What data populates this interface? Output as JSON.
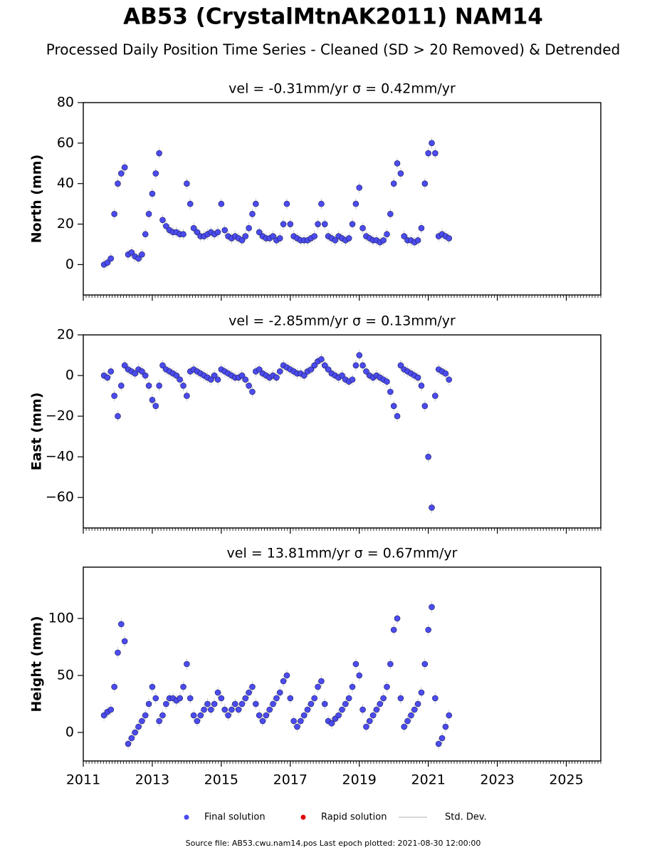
{
  "title": "AB53 (CrystalMtnAK2011) NAM14",
  "subtitle": "Processed Daily Position Time Series - Cleaned (SD > 20 Removed) & Detrended",
  "legend": [
    {
      "name": "Final solution",
      "color": "#4b4bf0"
    },
    {
      "name": "Rapid solution",
      "color": "#e00000"
    },
    {
      "name": "Std. Dev.",
      "color": "#cccccc"
    }
  ],
  "footer": "Source file: AB53.cwu.nam14.pos  Last epoch plotted: 2021-08-30 12:00:00",
  "chart_data": [
    {
      "type": "scatter",
      "title": "vel = -0.31mm/yr   σ = 0.42mm/yr",
      "ylabel": "North (mm)",
      "xlim": [
        2011,
        2026
      ],
      "ylim": [
        -15,
        80
      ],
      "yticks": [
        0,
        20,
        40,
        60,
        80
      ],
      "color": "#4b4bf0",
      "x": [
        2011.6,
        2011.7,
        2011.8,
        2011.9,
        2012.0,
        2012.1,
        2012.2,
        2012.3,
        2012.4,
        2012.5,
        2012.6,
        2012.7,
        2012.8,
        2012.9,
        2013.0,
        2013.1,
        2013.2,
        2013.3,
        2013.4,
        2013.5,
        2013.6,
        2013.7,
        2013.8,
        2013.9,
        2014.0,
        2014.1,
        2014.2,
        2014.3,
        2014.4,
        2014.5,
        2014.6,
        2014.7,
        2014.8,
        2014.9,
        2015.0,
        2015.1,
        2015.2,
        2015.3,
        2015.4,
        2015.5,
        2015.6,
        2015.7,
        2015.8,
        2015.9,
        2016.0,
        2016.1,
        2016.2,
        2016.3,
        2016.4,
        2016.5,
        2016.6,
        2016.7,
        2016.8,
        2016.9,
        2017.0,
        2017.1,
        2017.2,
        2017.3,
        2017.4,
        2017.5,
        2017.6,
        2017.7,
        2017.8,
        2017.9,
        2018.0,
        2018.1,
        2018.2,
        2018.3,
        2018.4,
        2018.5,
        2018.6,
        2018.7,
        2018.8,
        2018.9,
        2019.0,
        2019.1,
        2019.2,
        2019.3,
        2019.4,
        2019.5,
        2019.6,
        2019.7,
        2019.8,
        2019.9,
        2020.0,
        2020.1,
        2020.2,
        2020.3,
        2020.4,
        2020.5,
        2020.6,
        2020.7,
        2020.8,
        2020.9,
        2021.0,
        2021.1,
        2021.2,
        2021.3,
        2021.4,
        2021.5,
        2021.6
      ],
      "values": [
        0,
        1,
        3,
        25,
        40,
        45,
        48,
        5,
        6,
        4,
        3,
        5,
        15,
        25,
        35,
        45,
        55,
        22,
        19,
        17,
        16,
        16,
        15,
        15,
        40,
        30,
        18,
        16,
        14,
        14,
        15,
        16,
        15,
        16,
        30,
        17,
        14,
        13,
        14,
        13,
        12,
        14,
        18,
        25,
        30,
        16,
        14,
        13,
        13,
        14,
        12,
        13,
        20,
        30,
        20,
        14,
        13,
        12,
        12,
        12,
        13,
        14,
        20,
        30,
        20,
        14,
        13,
        12,
        14,
        13,
        12,
        13,
        20,
        30,
        38,
        18,
        14,
        13,
        12,
        12,
        11,
        12,
        15,
        25,
        40,
        50,
        45,
        14,
        12,
        12,
        11,
        12,
        18,
        40,
        55,
        60,
        55,
        14,
        15,
        14,
        13
      ]
    },
    {
      "type": "scatter",
      "title": "vel = -2.85mm/yr   σ = 0.13mm/yr",
      "ylabel": "East (mm)",
      "xlim": [
        2011,
        2026
      ],
      "ylim": [
        -75,
        20
      ],
      "yticks": [
        {
          "value": -60,
          "label": "−60"
        },
        {
          "value": -40,
          "label": "−40"
        },
        {
          "value": -20,
          "label": "−20"
        },
        0,
        20
      ],
      "color": "#4b4bf0",
      "x": [
        2011.6,
        2011.7,
        2011.8,
        2011.9,
        2012.0,
        2012.1,
        2012.2,
        2012.3,
        2012.4,
        2012.5,
        2012.6,
        2012.7,
        2012.8,
        2012.9,
        2013.0,
        2013.1,
        2013.2,
        2013.3,
        2013.4,
        2013.5,
        2013.6,
        2013.7,
        2013.8,
        2013.9,
        2014.0,
        2014.1,
        2014.2,
        2014.3,
        2014.4,
        2014.5,
        2014.6,
        2014.7,
        2014.8,
        2014.9,
        2015.0,
        2015.1,
        2015.2,
        2015.3,
        2015.4,
        2015.5,
        2015.6,
        2015.7,
        2015.8,
        2015.9,
        2016.0,
        2016.1,
        2016.2,
        2016.3,
        2016.4,
        2016.5,
        2016.6,
        2016.7,
        2016.8,
        2016.9,
        2017.0,
        2017.1,
        2017.2,
        2017.3,
        2017.4,
        2017.5,
        2017.6,
        2017.7,
        2017.8,
        2017.9,
        2018.0,
        2018.1,
        2018.2,
        2018.3,
        2018.4,
        2018.5,
        2018.6,
        2018.7,
        2018.8,
        2018.9,
        2019.0,
        2019.1,
        2019.2,
        2019.3,
        2019.4,
        2019.5,
        2019.6,
        2019.7,
        2019.8,
        2019.9,
        2020.0,
        2020.1,
        2020.2,
        2020.3,
        2020.4,
        2020.5,
        2020.6,
        2020.7,
        2020.8,
        2020.9,
        2021.0,
        2021.1,
        2021.2,
        2021.3,
        2021.4,
        2021.5,
        2021.6
      ],
      "values": [
        0,
        -1,
        2,
        -10,
        -20,
        -5,
        5,
        3,
        2,
        1,
        3,
        2,
        0,
        -5,
        -12,
        -15,
        -5,
        5,
        3,
        2,
        1,
        0,
        -2,
        -5,
        -10,
        2,
        3,
        2,
        1,
        0,
        -1,
        -2,
        0,
        -2,
        3,
        2,
        1,
        0,
        -1,
        -1,
        0,
        -2,
        -5,
        -8,
        2,
        3,
        1,
        0,
        -1,
        0,
        -1,
        2,
        5,
        4,
        3,
        2,
        1,
        1,
        0,
        2,
        3,
        5,
        7,
        8,
        5,
        3,
        1,
        0,
        -1,
        0,
        -2,
        -3,
        -2,
        5,
        10,
        5,
        2,
        0,
        -1,
        0,
        -1,
        -2,
        -3,
        -8,
        -15,
        -20,
        5,
        3,
        2,
        1,
        0,
        -1,
        -5,
        -15,
        -40,
        -65,
        -10,
        3,
        2,
        1,
        -2
      ]
    },
    {
      "type": "scatter",
      "title": "vel = 13.81mm/yr   σ = 0.67mm/yr",
      "ylabel": "Height (mm)",
      "xlim": [
        2011,
        2026
      ],
      "ylim": [
        -25,
        145
      ],
      "yticks": [
        0,
        50,
        100
      ],
      "color": "#4b4bf0",
      "xticks": [
        2011,
        2013,
        2015,
        2017,
        2019,
        2021,
        2023,
        2025
      ],
      "x": [
        2011.6,
        2011.7,
        2011.8,
        2011.9,
        2012.0,
        2012.1,
        2012.2,
        2012.3,
        2012.4,
        2012.5,
        2012.6,
        2012.7,
        2012.8,
        2012.9,
        2013.0,
        2013.1,
        2013.2,
        2013.3,
        2013.4,
        2013.5,
        2013.6,
        2013.7,
        2013.8,
        2013.9,
        2014.0,
        2014.1,
        2014.2,
        2014.3,
        2014.4,
        2014.5,
        2014.6,
        2014.7,
        2014.8,
        2014.9,
        2015.0,
        2015.1,
        2015.2,
        2015.3,
        2015.4,
        2015.5,
        2015.6,
        2015.7,
        2015.8,
        2015.9,
        2016.0,
        2016.1,
        2016.2,
        2016.3,
        2016.4,
        2016.5,
        2016.6,
        2016.7,
        2016.8,
        2016.9,
        2017.0,
        2017.1,
        2017.2,
        2017.3,
        2017.4,
        2017.5,
        2017.6,
        2017.7,
        2017.8,
        2017.9,
        2018.0,
        2018.1,
        2018.2,
        2018.3,
        2018.4,
        2018.5,
        2018.6,
        2018.7,
        2018.8,
        2018.9,
        2019.0,
        2019.1,
        2019.2,
        2019.3,
        2019.4,
        2019.5,
        2019.6,
        2019.7,
        2019.8,
        2019.9,
        2020.0,
        2020.1,
        2020.2,
        2020.3,
        2020.4,
        2020.5,
        2020.6,
        2020.7,
        2020.8,
        2020.9,
        2021.0,
        2021.1,
        2021.2,
        2021.3,
        2021.4,
        2021.5,
        2021.6
      ],
      "values": [
        15,
        18,
        20,
        40,
        70,
        95,
        80,
        -10,
        -5,
        0,
        5,
        10,
        15,
        25,
        40,
        30,
        10,
        15,
        25,
        30,
        30,
        28,
        30,
        40,
        60,
        30,
        15,
        10,
        15,
        20,
        25,
        20,
        25,
        35,
        30,
        20,
        15,
        20,
        25,
        20,
        25,
        30,
        35,
        40,
        25,
        15,
        10,
        15,
        20,
        25,
        30,
        35,
        45,
        50,
        30,
        10,
        5,
        10,
        15,
        20,
        25,
        30,
        40,
        45,
        25,
        10,
        8,
        12,
        15,
        20,
        25,
        30,
        40,
        60,
        50,
        20,
        5,
        10,
        15,
        20,
        25,
        30,
        40,
        60,
        90,
        100,
        30,
        5,
        10,
        15,
        20,
        25,
        35,
        60,
        90,
        110,
        30,
        -10,
        -5,
        5,
        15
      ]
    }
  ]
}
